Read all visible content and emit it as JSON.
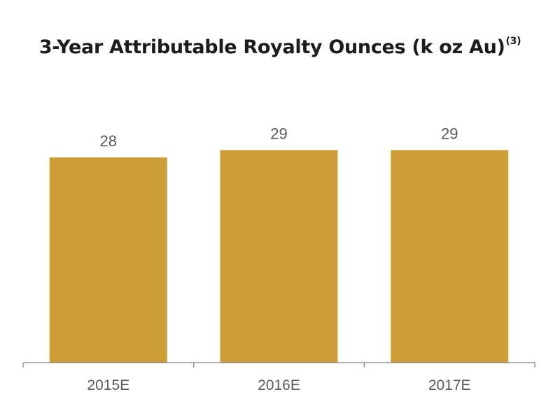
{
  "chart_data": {
    "type": "bar",
    "title": "3-Year Attributable Royalty Ounces (k oz Au)",
    "title_footnote": "(3)",
    "xlabel": "",
    "ylabel": "",
    "categories": [
      "2015E",
      "2016E",
      "2017E"
    ],
    "values": [
      28,
      29,
      29
    ],
    "ylim": [
      0,
      31
    ],
    "grid": false,
    "legend": "none",
    "bar_color": "#CE9E36",
    "axis_color": "#7F7F7F",
    "label_color": "#595959"
  }
}
